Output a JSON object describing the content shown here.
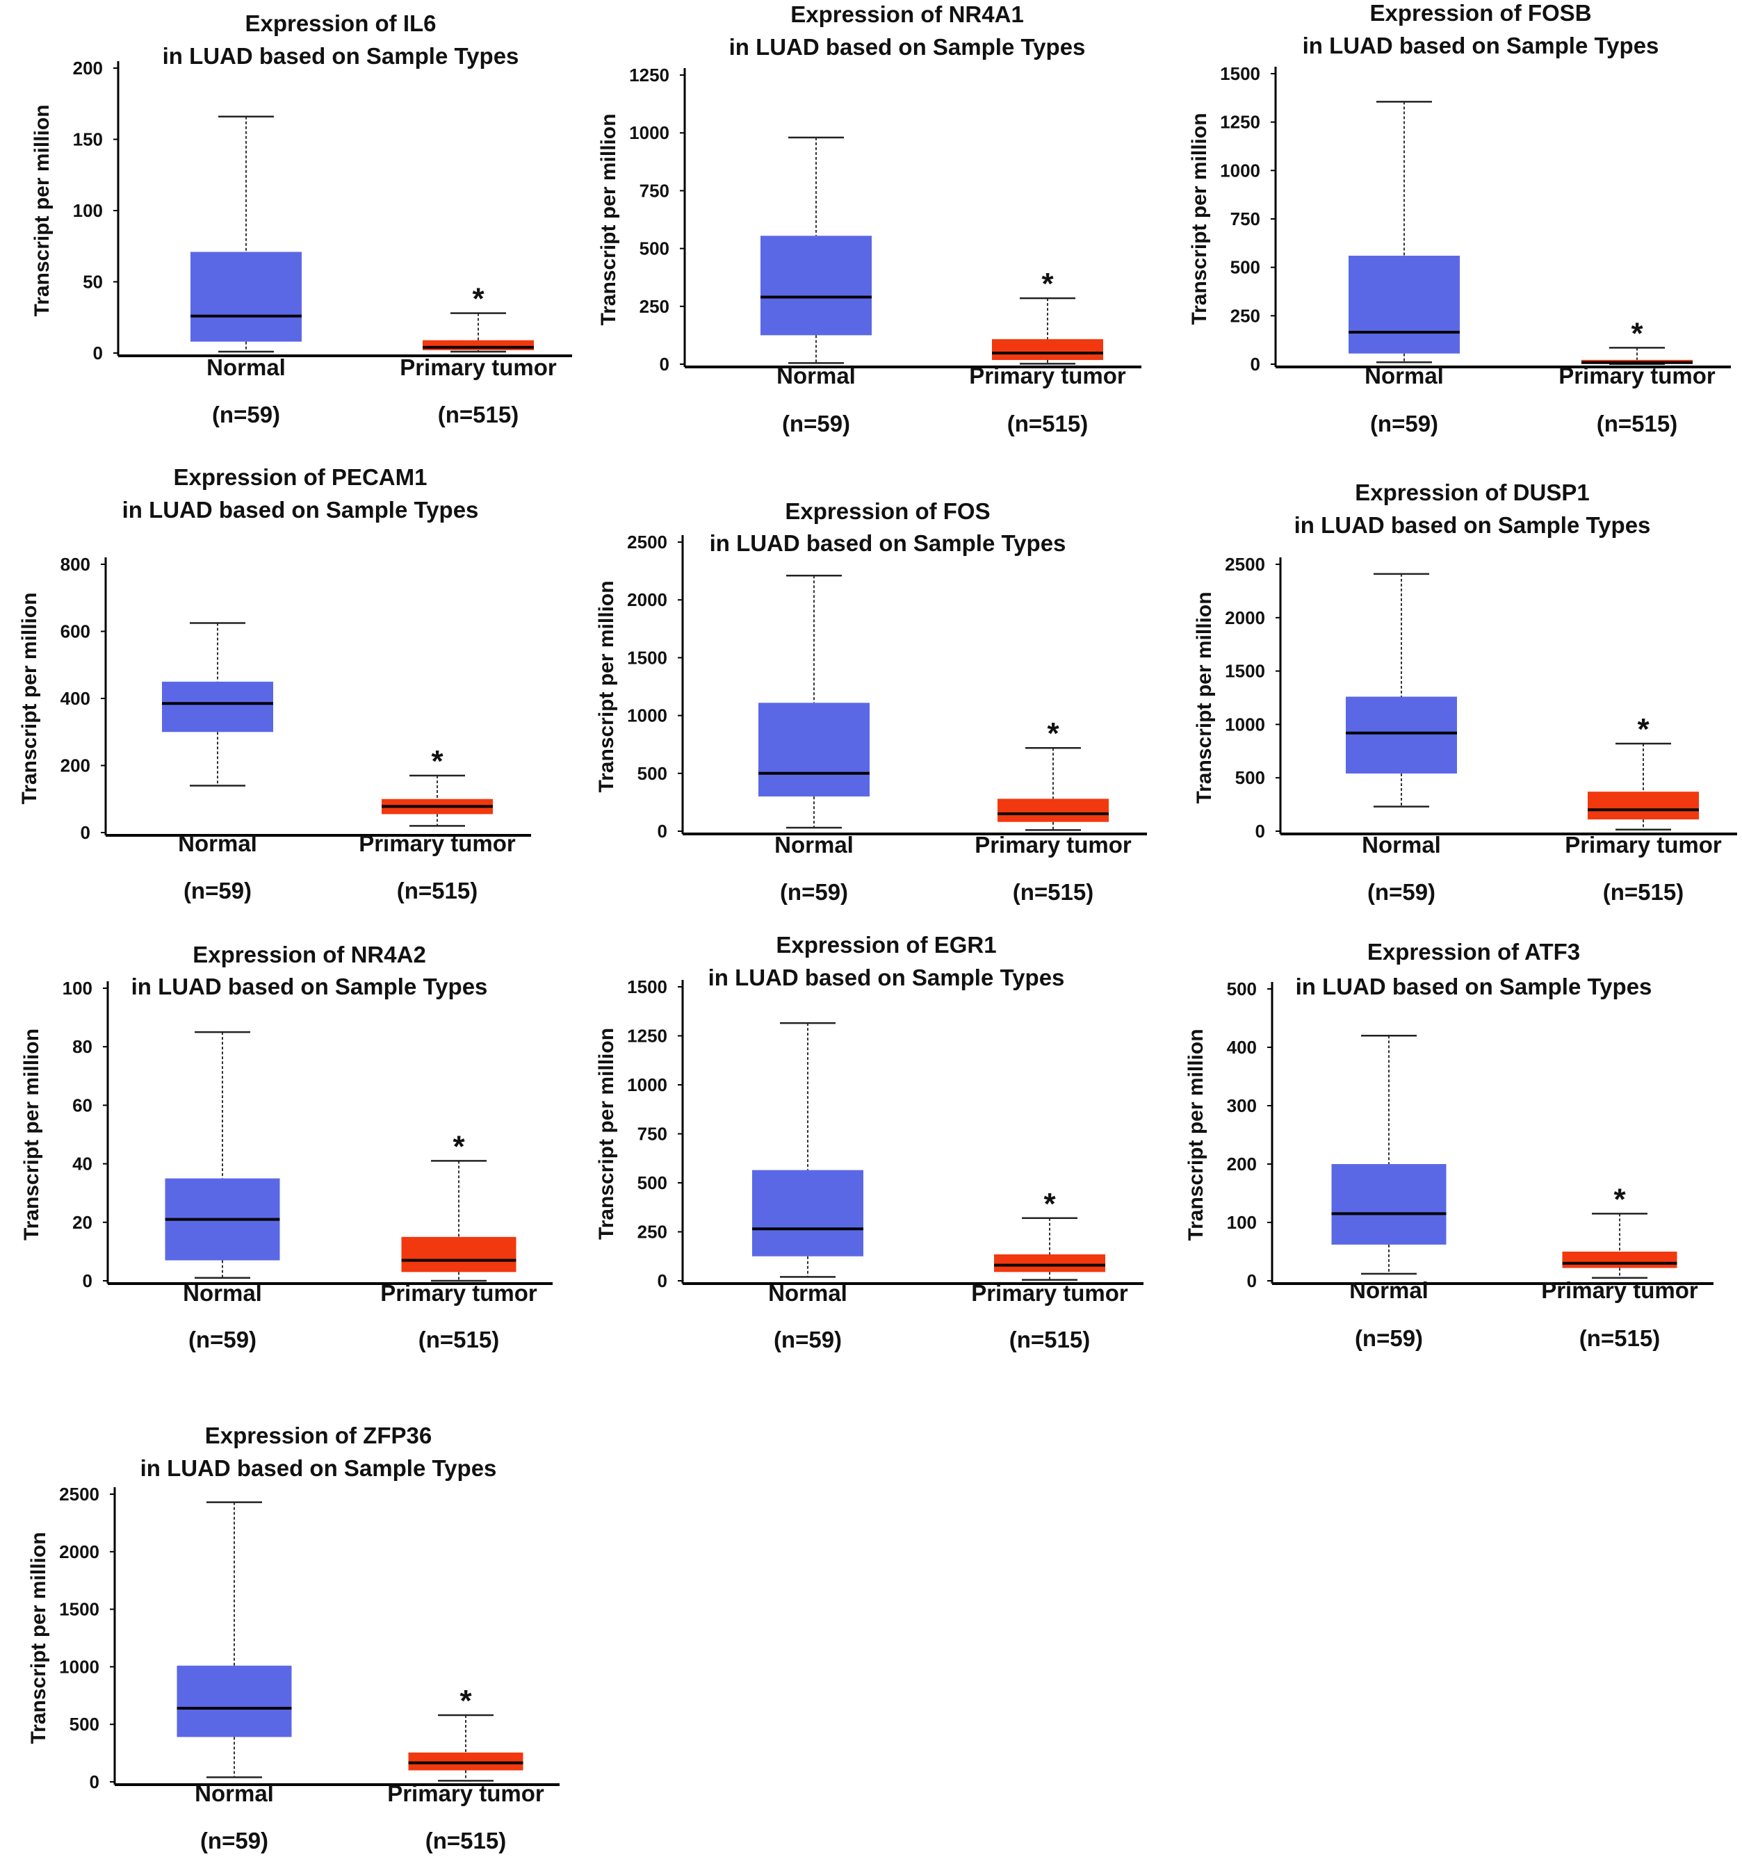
{
  "figure": {
    "title_prefix": "Expression of ",
    "title_line2": "in LUAD based on Sample Types",
    "ylabel": "Transcript per million",
    "significance_mark": "*"
  },
  "colors": {
    "normal_box": "#5b68e6",
    "tumor_box": "#f2380f",
    "median": "#000000",
    "axis": "#000000"
  },
  "chart_data": [
    {
      "type": "boxplot",
      "gene": "IL6",
      "title": "Expression of IL6 in LUAD based on Sample Types",
      "ylabel": "Transcript per million",
      "ylim": [
        0,
        200
      ],
      "yticks": [
        0,
        50,
        100,
        150,
        200
      ],
      "groups": [
        {
          "label": "Normal",
          "n_label": "(n=59)",
          "min": 1,
          "q1": 8,
          "median": 26,
          "q3": 71,
          "max": 166
        },
        {
          "label": "Primary tumor",
          "n_label": "(n=515)",
          "min": 1,
          "q1": 2,
          "median": 4,
          "q3": 9,
          "max": 28,
          "significant": true
        }
      ]
    },
    {
      "type": "boxplot",
      "gene": "NR4A1",
      "title": "Expression of NR4A1 in LUAD based on Sample Types",
      "ylabel": "Transcript per million",
      "ylim": [
        0,
        1250
      ],
      "yticks": [
        0,
        250,
        500,
        750,
        1000,
        1250
      ],
      "groups": [
        {
          "label": "Normal",
          "n_label": "(n=59)",
          "min": 5,
          "q1": 125,
          "median": 290,
          "q3": 555,
          "max": 980
        },
        {
          "label": "Primary tumor",
          "n_label": "(n=515)",
          "min": 2,
          "q1": 18,
          "median": 48,
          "q3": 108,
          "max": 285,
          "significant": true
        }
      ]
    },
    {
      "type": "boxplot",
      "gene": "FOSB",
      "title": "Expression of FOSB in LUAD based on Sample Types",
      "ylabel": "Transcript per million",
      "ylim": [
        0,
        1500
      ],
      "yticks": [
        0,
        250,
        500,
        750,
        1000,
        1250,
        1500
      ],
      "groups": [
        {
          "label": "Normal",
          "n_label": "(n=59)",
          "min": 10,
          "q1": 55,
          "median": 165,
          "q3": 560,
          "max": 1355
        },
        {
          "label": "Primary tumor",
          "n_label": "(n=515)",
          "min": 1,
          "q1": 3,
          "median": 8,
          "q3": 22,
          "max": 85,
          "significant": true
        }
      ]
    },
    {
      "type": "boxplot",
      "gene": "PECAM1",
      "title": "Expression of PECAM1 in LUAD based on Sample Types",
      "ylabel": "Transcript per million",
      "ylim": [
        0,
        800
      ],
      "yticks": [
        0,
        200,
        400,
        600,
        800
      ],
      "groups": [
        {
          "label": "Normal",
          "n_label": "(n=59)",
          "min": 140,
          "q1": 300,
          "median": 385,
          "q3": 450,
          "max": 625
        },
        {
          "label": "Primary tumor",
          "n_label": "(n=515)",
          "min": 20,
          "q1": 55,
          "median": 78,
          "q3": 100,
          "max": 170,
          "significant": true
        }
      ]
    },
    {
      "type": "boxplot",
      "gene": "FOS",
      "title": "Expression of FOS in LUAD based on Sample Types",
      "ylabel": "Transcript per million",
      "ylim": [
        0,
        2500
      ],
      "yticks": [
        0,
        500,
        1000,
        1500,
        2000,
        2500
      ],
      "groups": [
        {
          "label": "Normal",
          "n_label": "(n=59)",
          "min": 30,
          "q1": 300,
          "median": 500,
          "q3": 1110,
          "max": 2210
        },
        {
          "label": "Primary tumor",
          "n_label": "(n=515)",
          "min": 10,
          "q1": 80,
          "median": 150,
          "q3": 280,
          "max": 720,
          "significant": true
        }
      ]
    },
    {
      "type": "boxplot",
      "gene": "DUSP1",
      "title": "Expression of DUSP1 in LUAD based on Sample Types",
      "ylabel": "Transcript per million",
      "ylim": [
        0,
        2500
      ],
      "yticks": [
        0,
        500,
        1000,
        1500,
        2000,
        2500
      ],
      "groups": [
        {
          "label": "Normal",
          "n_label": "(n=59)",
          "min": 230,
          "q1": 540,
          "median": 920,
          "q3": 1260,
          "max": 2410
        },
        {
          "label": "Primary tumor",
          "n_label": "(n=515)",
          "min": 15,
          "q1": 110,
          "median": 200,
          "q3": 370,
          "max": 820,
          "significant": true
        }
      ]
    },
    {
      "type": "boxplot",
      "gene": "NR4A2",
      "title": "Expression of NR4A2 in LUAD based on Sample Types",
      "ylabel": "Transcript per million",
      "ylim": [
        0,
        100
      ],
      "yticks": [
        0,
        20,
        40,
        60,
        80,
        100
      ],
      "groups": [
        {
          "label": "Normal",
          "n_label": "(n=59)",
          "min": 1,
          "q1": 7,
          "median": 21,
          "q3": 35,
          "max": 85
        },
        {
          "label": "Primary tumor",
          "n_label": "(n=515)",
          "min": 0,
          "q1": 3,
          "median": 7,
          "q3": 15,
          "max": 41,
          "significant": true
        }
      ]
    },
    {
      "type": "boxplot",
      "gene": "EGR1",
      "title": "Expression of EGR1 in LUAD based on Sample Types",
      "ylabel": "Transcript per million",
      "ylim": [
        0,
        1500
      ],
      "yticks": [
        0,
        250,
        500,
        750,
        1000,
        1250,
        1500
      ],
      "groups": [
        {
          "label": "Normal",
          "n_label": "(n=59)",
          "min": 20,
          "q1": 125,
          "median": 265,
          "q3": 565,
          "max": 1315
        },
        {
          "label": "Primary tumor",
          "n_label": "(n=515)",
          "min": 5,
          "q1": 45,
          "median": 80,
          "q3": 135,
          "max": 320,
          "significant": true
        }
      ]
    },
    {
      "type": "boxplot",
      "gene": "ATF3",
      "title": "Expression of ATF3 in LUAD based on Sample Types",
      "ylabel": "Transcript per million",
      "ylim": [
        0,
        500
      ],
      "yticks": [
        0,
        100,
        200,
        300,
        400,
        500
      ],
      "groups": [
        {
          "label": "Normal",
          "n_label": "(n=59)",
          "min": 12,
          "q1": 62,
          "median": 115,
          "q3": 200,
          "max": 420
        },
        {
          "label": "Primary tumor",
          "n_label": "(n=515)",
          "min": 5,
          "q1": 22,
          "median": 30,
          "q3": 50,
          "max": 115,
          "significant": true
        }
      ]
    },
    {
      "type": "boxplot",
      "gene": "ZFP36",
      "title": "Expression of ZFP36 in LUAD based on Sample Types",
      "ylabel": "Transcript per million",
      "ylim": [
        0,
        2500
      ],
      "yticks": [
        0,
        500,
        1000,
        1500,
        2000,
        2500
      ],
      "groups": [
        {
          "label": "Normal",
          "n_label": "(n=59)",
          "min": 40,
          "q1": 390,
          "median": 640,
          "q3": 1010,
          "max": 2430
        },
        {
          "label": "Primary tumor",
          "n_label": "(n=515)",
          "min": 10,
          "q1": 100,
          "median": 165,
          "q3": 255,
          "max": 580,
          "significant": true
        }
      ]
    }
  ]
}
